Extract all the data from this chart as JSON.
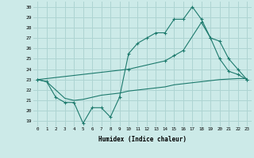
{
  "xlabel": "Humidex (Indice chaleur)",
  "background_color": "#cceae8",
  "grid_color": "#aed4d2",
  "line_color": "#1d7a6d",
  "ylim": [
    18.5,
    30.5
  ],
  "xlim": [
    -0.5,
    23.5
  ],
  "yticks": [
    19,
    20,
    21,
    22,
    23,
    24,
    25,
    26,
    27,
    28,
    29,
    30
  ],
  "x_ticks": [
    0,
    1,
    2,
    3,
    4,
    5,
    6,
    7,
    8,
    9,
    10,
    11,
    12,
    13,
    14,
    15,
    16,
    17,
    18,
    19,
    20,
    21,
    22,
    23
  ],
  "line1_x": [
    0,
    1,
    2,
    3,
    4,
    5,
    6,
    7,
    8,
    9,
    10,
    11,
    12,
    13,
    14,
    15,
    16,
    17,
    18,
    19,
    20,
    21,
    22,
    23
  ],
  "line1_y": [
    23.0,
    22.8,
    21.3,
    20.8,
    20.8,
    18.8,
    20.3,
    20.3,
    19.4,
    21.3,
    25.5,
    26.5,
    27.0,
    27.5,
    27.5,
    28.8,
    28.8,
    30.0,
    28.8,
    27.0,
    25.0,
    23.8,
    23.5,
    23.0
  ],
  "line2_x": [
    0,
    10,
    14,
    15,
    16,
    18,
    19,
    20,
    21,
    22,
    23
  ],
  "line2_y": [
    23.0,
    24.0,
    24.8,
    25.3,
    25.8,
    28.5,
    27.0,
    26.7,
    25.0,
    24.0,
    23.0
  ],
  "line3_x": [
    0,
    1,
    2,
    3,
    4,
    5,
    6,
    7,
    8,
    9,
    10,
    11,
    12,
    13,
    14,
    15,
    16,
    17,
    18,
    19,
    20,
    21,
    22,
    23
  ],
  "line3_y": [
    23.0,
    22.8,
    22.0,
    21.2,
    21.0,
    21.1,
    21.3,
    21.5,
    21.6,
    21.7,
    21.9,
    22.0,
    22.1,
    22.2,
    22.3,
    22.5,
    22.6,
    22.7,
    22.8,
    22.9,
    23.0,
    23.05,
    23.1,
    23.1
  ]
}
